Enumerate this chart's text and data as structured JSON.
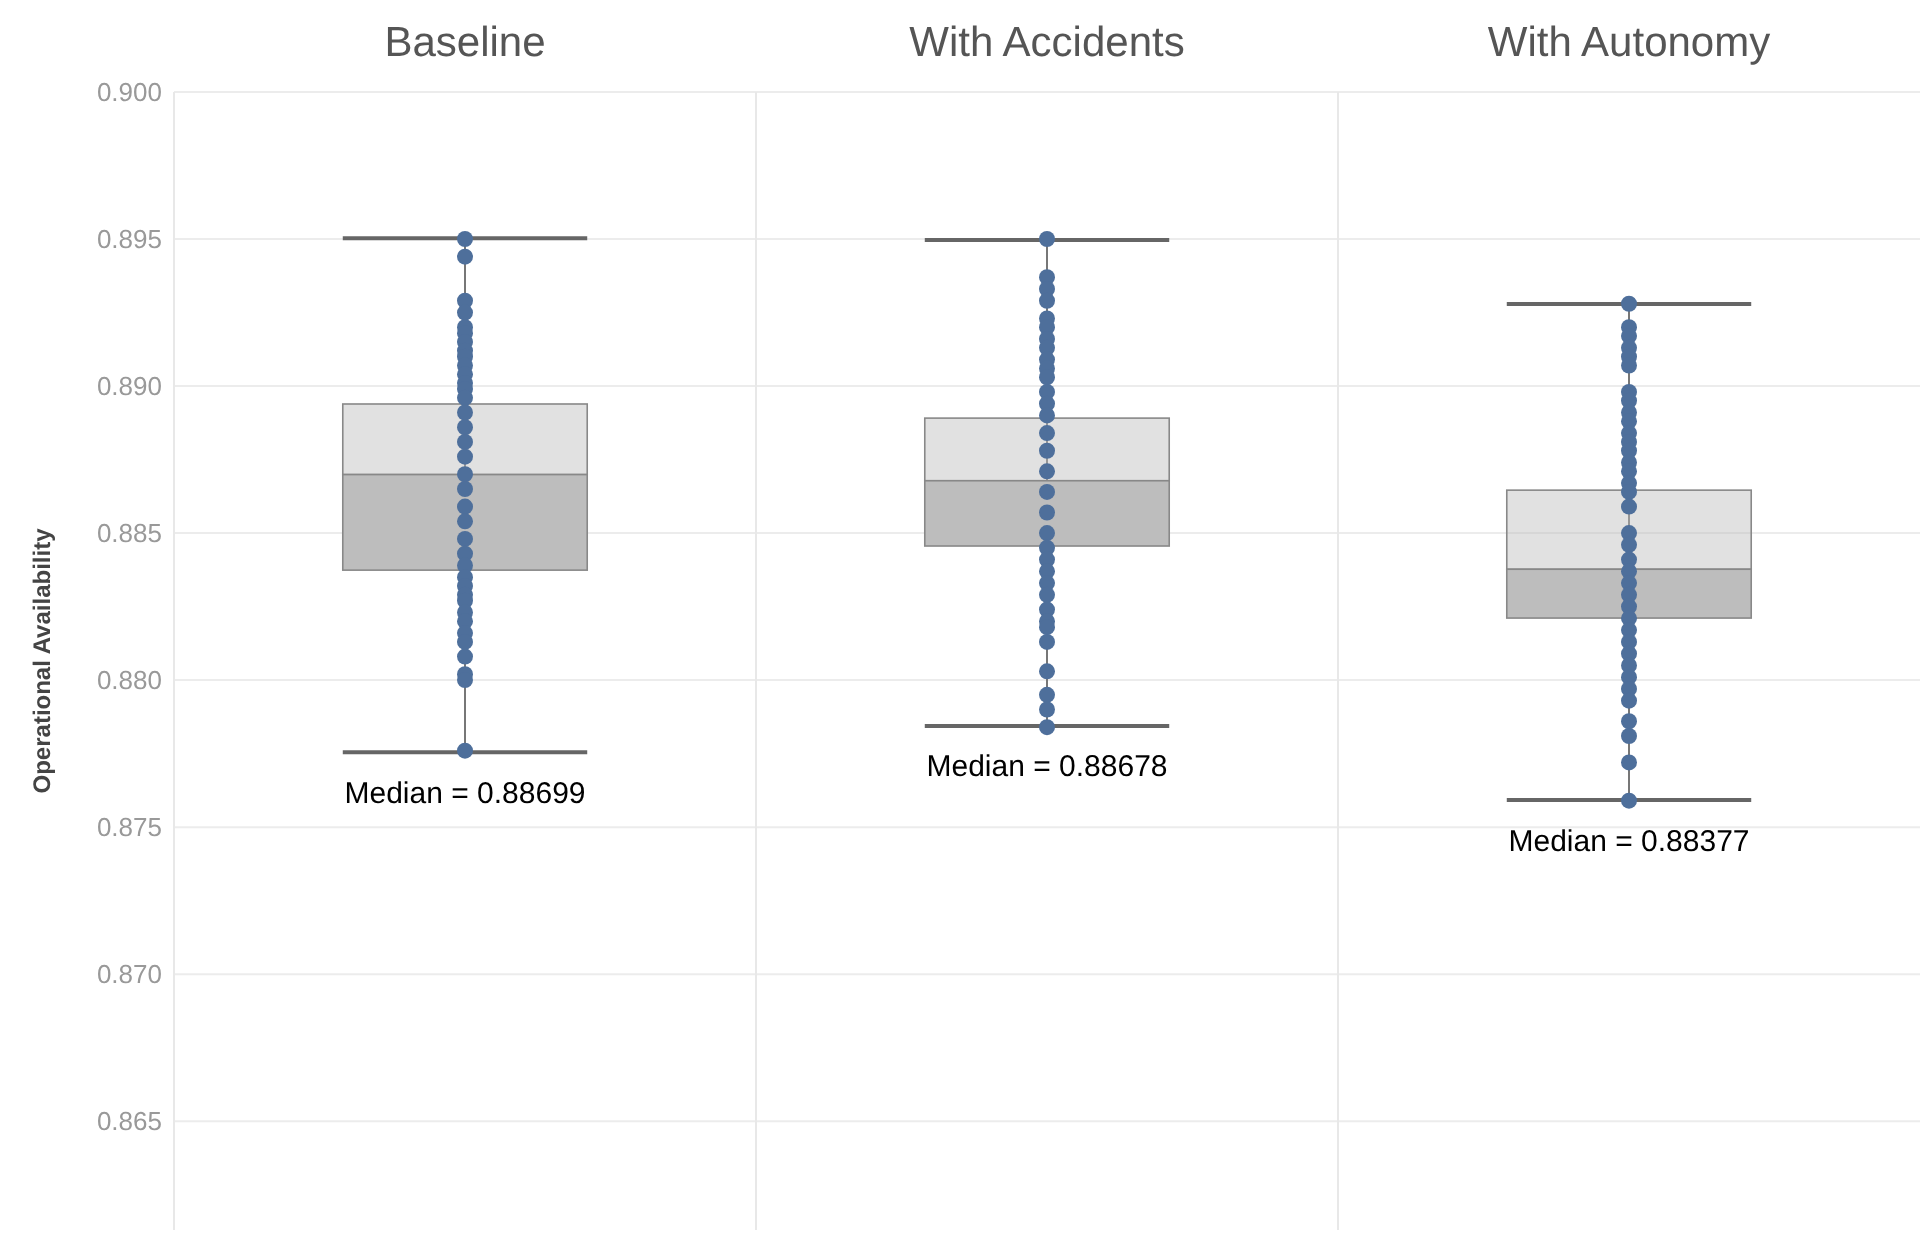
{
  "chart_data": {
    "type": "box",
    "categories": [
      "Baseline",
      "With Accidents",
      "With Autonomy"
    ],
    "ylabel": "Operational Availability",
    "ylim": [
      0.8613,
      0.9
    ],
    "yticks": [
      {
        "value": 0.865,
        "label": "0.865"
      },
      {
        "value": 0.87,
        "label": "0.870"
      },
      {
        "value": 0.875,
        "label": "0.875"
      },
      {
        "value": 0.88,
        "label": "0.880"
      },
      {
        "value": 0.885,
        "label": "0.885"
      },
      {
        "value": 0.89,
        "label": "0.890"
      },
      {
        "value": 0.895,
        "label": "0.895"
      },
      {
        "value": 0.9,
        "label": "0.900"
      }
    ],
    "grid": "y",
    "marker": "circle",
    "series": [
      {
        "color": "#bdbdbd",
        "boxes": [
          {
            "low": 0.87755,
            "q1": 0.88374,
            "median": 0.88699,
            "q3": 0.88939,
            "high": 0.89503
          },
          {
            "low": 0.87844,
            "q1": 0.88456,
            "median": 0.88678,
            "q3": 0.88891,
            "high": 0.89497
          },
          {
            "low": 0.87592,
            "q1": 0.88211,
            "median": 0.88377,
            "q3": 0.88646,
            "high": 0.89279
          }
        ]
      },
      {
        "type": "scatter",
        "color": "#4e6f9b",
        "x": [
          "Baseline",
          "Baseline",
          "Baseline",
          "Baseline",
          "Baseline",
          "Baseline",
          "Baseline",
          "Baseline",
          "Baseline",
          "Baseline",
          "Baseline",
          "Baseline",
          "Baseline",
          "Baseline",
          "Baseline",
          "Baseline",
          "Baseline",
          "Baseline",
          "Baseline",
          "Baseline",
          "Baseline",
          "Baseline",
          "Baseline",
          "Baseline",
          "Baseline",
          "Baseline",
          "Baseline",
          "Baseline",
          "Baseline",
          "Baseline",
          "Baseline",
          "Baseline",
          "Baseline",
          "Baseline",
          "Baseline",
          "Baseline",
          "Baseline",
          "With Accidents",
          "With Accidents",
          "With Accidents",
          "With Accidents",
          "With Accidents",
          "With Accidents",
          "With Accidents",
          "With Accidents",
          "With Accidents",
          "With Accidents",
          "With Accidents",
          "With Accidents",
          "With Accidents",
          "With Accidents",
          "With Accidents",
          "With Accidents",
          "With Accidents",
          "With Accidents",
          "With Accidents",
          "With Accidents",
          "With Accidents",
          "With Accidents",
          "With Accidents",
          "With Accidents",
          "With Accidents",
          "With Accidents",
          "With Accidents",
          "With Accidents",
          "With Accidents",
          "With Accidents",
          "With Accidents",
          "With Accidents",
          "With Accidents",
          "With Autonomy",
          "With Autonomy",
          "With Autonomy",
          "With Autonomy",
          "With Autonomy",
          "With Autonomy",
          "With Autonomy",
          "With Autonomy",
          "With Autonomy",
          "With Autonomy",
          "With Autonomy",
          "With Autonomy",
          "With Autonomy",
          "With Autonomy",
          "With Autonomy",
          "With Autonomy",
          "With Autonomy",
          "With Autonomy",
          "With Autonomy",
          "With Autonomy",
          "With Autonomy",
          "With Autonomy",
          "With Autonomy",
          "With Autonomy",
          "With Autonomy",
          "With Autonomy",
          "With Autonomy",
          "With Autonomy",
          "With Autonomy",
          "With Autonomy",
          "With Autonomy",
          "With Autonomy",
          "With Autonomy",
          "With Autonomy",
          "With Autonomy",
          "With Autonomy",
          "With Autonomy"
        ],
        "values": [
          0.895,
          0.8944,
          0.8929,
          0.8925,
          0.892,
          0.8918,
          0.8915,
          0.8912,
          0.891,
          0.8907,
          0.8904,
          0.8901,
          0.8899,
          0.8896,
          0.8891,
          0.8886,
          0.8881,
          0.8876,
          0.887,
          0.8865,
          0.8859,
          0.8854,
          0.8848,
          0.8843,
          0.8839,
          0.8835,
          0.8832,
          0.8829,
          0.8827,
          0.8823,
          0.882,
          0.8816,
          0.8813,
          0.8808,
          0.8802,
          0.88,
          0.8776,
          0.895,
          0.8937,
          0.8933,
          0.8929,
          0.8923,
          0.892,
          0.8916,
          0.8913,
          0.8909,
          0.8906,
          0.8903,
          0.8898,
          0.8894,
          0.889,
          0.8884,
          0.8878,
          0.8871,
          0.8864,
          0.8857,
          0.885,
          0.8845,
          0.8841,
          0.8837,
          0.8833,
          0.8829,
          0.8824,
          0.882,
          0.8818,
          0.8813,
          0.8803,
          0.8795,
          0.879,
          0.8784,
          0.8928,
          0.892,
          0.8917,
          0.8913,
          0.891,
          0.8907,
          0.8898,
          0.8895,
          0.8891,
          0.8888,
          0.8884,
          0.8881,
          0.8878,
          0.8874,
          0.8871,
          0.8867,
          0.8864,
          0.8859,
          0.885,
          0.8846,
          0.8841,
          0.8837,
          0.8833,
          0.8829,
          0.8825,
          0.8821,
          0.8817,
          0.8813,
          0.8809,
          0.8805,
          0.8801,
          0.8797,
          0.8793,
          0.8786,
          0.8781,
          0.8772,
          0.8759
        ]
      }
    ],
    "annotations": [
      "Median = 0.88699",
      "Median = 0.88678",
      "Median = 0.88377"
    ]
  }
}
